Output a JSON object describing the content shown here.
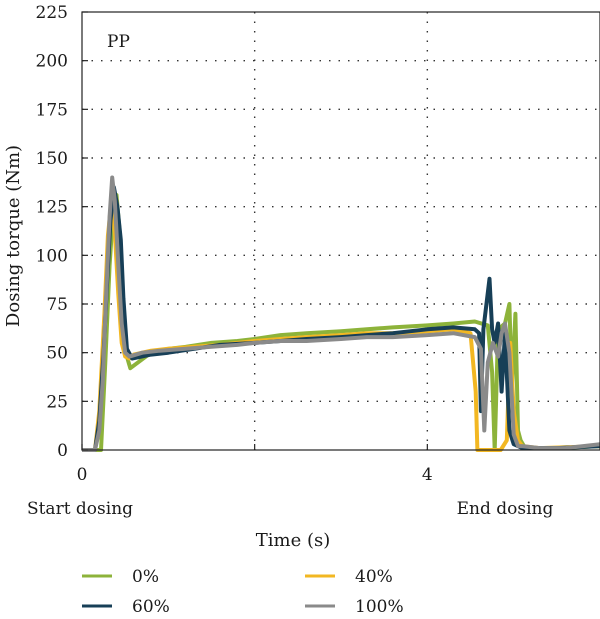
{
  "chart_data": {
    "type": "line",
    "ylabel": "Dosing torque (Nm)",
    "xlabel": "Time (s)",
    "panel_label": "PP",
    "xlim": [
      0,
      6
    ],
    "ylim": [
      0,
      225
    ],
    "x_ticks": [
      0,
      2,
      4
    ],
    "x_tick_labels": [
      "0",
      "",
      "4"
    ],
    "y_ticks": [
      0,
      25,
      50,
      75,
      100,
      125,
      150,
      175,
      200,
      225
    ],
    "grid": "dotted",
    "annotations": {
      "start": "Start dosing",
      "end": "End dosing"
    },
    "legend_position": "bottom",
    "series": [
      {
        "name": "0%",
        "color": "#8db33a",
        "x": [
          0,
          0.15,
          0.22,
          0.27,
          0.32,
          0.36,
          0.4,
          0.44,
          0.48,
          0.52,
          0.56,
          0.62,
          0.8,
          1.0,
          1.2,
          1.5,
          1.8,
          2.0,
          2.3,
          2.6,
          3.0,
          3.3,
          3.6,
          4.0,
          4.3,
          4.55,
          4.7,
          4.75,
          4.78,
          4.82,
          4.9,
          4.95,
          4.98,
          5.02,
          5.05,
          5.08,
          5.12,
          5.2,
          5.5,
          6.0
        ],
        "y": [
          0,
          0,
          0,
          45,
          95,
          122,
          131,
          110,
          70,
          48,
          42,
          44,
          50,
          52,
          53,
          55,
          56,
          57,
          59,
          60,
          61,
          62,
          63,
          64,
          65,
          66,
          64,
          40,
          0,
          62,
          65,
          75,
          30,
          70,
          10,
          5,
          2,
          1,
          1,
          2
        ]
      },
      {
        "name": "40%",
        "color": "#f2b722",
        "x": [
          0,
          0.15,
          0.2,
          0.26,
          0.3,
          0.34,
          0.38,
          0.42,
          0.46,
          0.5,
          0.55,
          0.6,
          0.8,
          1.0,
          1.3,
          1.6,
          2.0,
          2.3,
          2.6,
          3.0,
          3.3,
          3.6,
          4.0,
          4.3,
          4.5,
          4.56,
          4.58,
          4.65,
          4.75,
          4.85,
          4.92,
          4.96,
          5.0,
          5.05,
          5.1,
          5.3,
          6.0
        ],
        "y": [
          0,
          0,
          20,
          70,
          110,
          128,
          112,
          80,
          55,
          48,
          47,
          49,
          51,
          52,
          53,
          54,
          56,
          57,
          58,
          59,
          60,
          60,
          61,
          62,
          60,
          30,
          0,
          0,
          0,
          0,
          5,
          55,
          20,
          5,
          2,
          1,
          2
        ]
      },
      {
        "name": "60%",
        "color": "#173f57",
        "x": [
          0,
          0.15,
          0.2,
          0.25,
          0.29,
          0.33,
          0.37,
          0.41,
          0.45,
          0.48,
          0.52,
          0.58,
          0.8,
          1.0,
          1.3,
          1.6,
          2.0,
          2.3,
          2.6,
          3.0,
          3.3,
          3.6,
          4.0,
          4.3,
          4.55,
          4.6,
          4.62,
          4.65,
          4.72,
          4.75,
          4.78,
          4.82,
          4.86,
          4.9,
          4.95,
          5.0,
          5.1,
          5.5,
          6.0
        ],
        "y": [
          0,
          0,
          15,
          50,
          85,
          118,
          135,
          125,
          108,
          78,
          52,
          47,
          49,
          50,
          52,
          54,
          55,
          56,
          57,
          58,
          59,
          60,
          62,
          63,
          62,
          60,
          20,
          62,
          88,
          62,
          55,
          65,
          30,
          60,
          10,
          3,
          1,
          1,
          2
        ]
      },
      {
        "name": "100%",
        "color": "#8a8a8a",
        "x": [
          0,
          0.15,
          0.2,
          0.24,
          0.28,
          0.32,
          0.35,
          0.38,
          0.42,
          0.46,
          0.5,
          0.55,
          0.7,
          0.9,
          1.2,
          1.5,
          1.8,
          2.0,
          2.3,
          2.6,
          3.0,
          3.3,
          3.6,
          4.0,
          4.3,
          4.55,
          4.62,
          4.66,
          4.7,
          4.76,
          4.82,
          4.86,
          4.9,
          4.95,
          5.0,
          5.05,
          5.1,
          5.3,
          5.6,
          6.0
        ],
        "y": [
          0,
          0,
          10,
          35,
          80,
          120,
          140,
          128,
          95,
          65,
          50,
          48,
          50,
          51,
          52,
          53,
          54,
          55,
          56,
          56,
          57,
          58,
          58,
          59,
          60,
          58,
          52,
          10,
          45,
          55,
          48,
          60,
          65,
          50,
          8,
          2,
          2,
          1,
          1,
          3
        ]
      }
    ]
  }
}
